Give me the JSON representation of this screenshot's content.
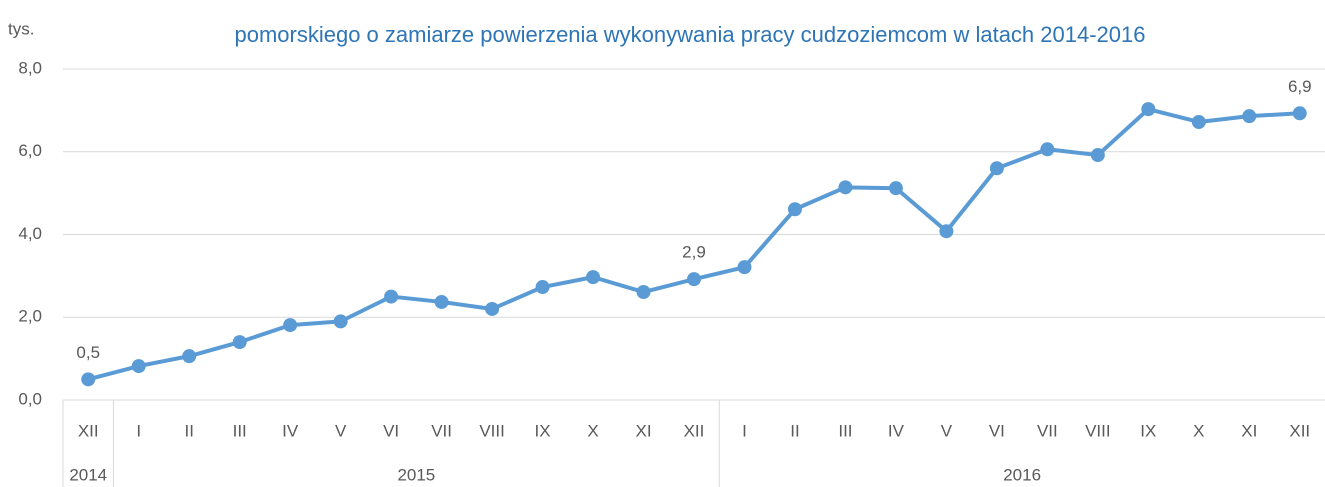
{
  "chart_data": {
    "type": "line",
    "title": "pomorskiego o zamiarze powierzenia wykonywania pracy cudzoziemcom w latach 2014-2016",
    "y_label": "tys.",
    "categories": [
      "XII",
      "I",
      "II",
      "III",
      "IV",
      "V",
      "VI",
      "VII",
      "VIII",
      "IX",
      "X",
      "XI",
      "XII",
      "I",
      "II",
      "III",
      "IV",
      "V",
      "VI",
      "VII",
      "VIII",
      "IX",
      "X",
      "XI",
      "XII"
    ],
    "groups": [
      {
        "label": "2014",
        "count": 1
      },
      {
        "label": "2015",
        "count": 12
      },
      {
        "label": "2016",
        "count": 12
      }
    ],
    "series": [
      {
        "name": "tys.",
        "color": "#5b9bd5",
        "values": [
          0.5,
          0.82,
          1.06,
          1.4,
          1.81,
          1.9,
          2.5,
          2.37,
          2.2,
          2.73,
          2.97,
          2.61,
          2.92,
          3.21,
          4.61,
          5.14,
          5.12,
          4.08,
          5.6,
          6.06,
          5.92,
          7.03,
          6.72,
          6.86,
          6.93
        ],
        "value_labels": [
          "0,5",
          null,
          null,
          null,
          null,
          null,
          null,
          null,
          null,
          null,
          null,
          null,
          "2,9",
          null,
          null,
          null,
          null,
          null,
          null,
          null,
          null,
          null,
          null,
          null,
          "6,9"
        ]
      }
    ],
    "ylim": [
      0,
      8
    ],
    "yticks": [
      {
        "value": 0,
        "label": "0,0"
      },
      {
        "value": 2,
        "label": "2,0"
      },
      {
        "value": 4,
        "label": "4,0"
      },
      {
        "value": 6,
        "label": "6,0"
      },
      {
        "value": 8,
        "label": "8,0"
      }
    ],
    "grid": true
  }
}
